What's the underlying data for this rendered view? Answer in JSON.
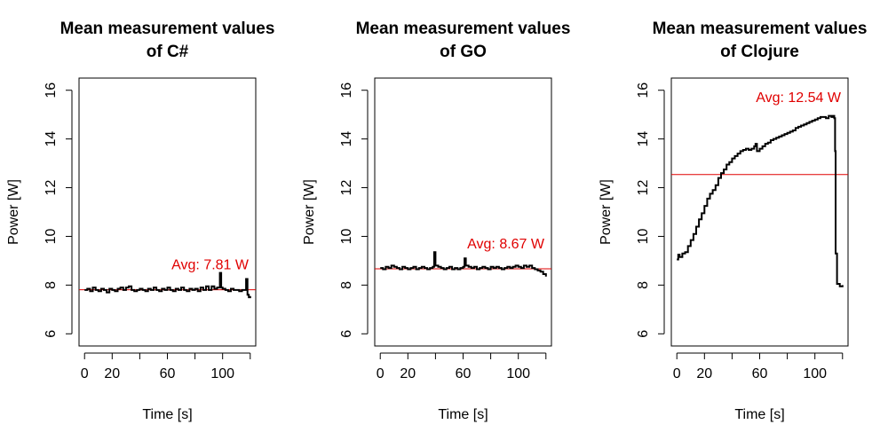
{
  "chart_data": [
    {
      "type": "line",
      "title": [
        "Mean measurement values",
        "of C#"
      ],
      "xlabel": "Time [s]",
      "ylabel": "Power [W]",
      "xlim": [
        -4,
        124
      ],
      "ylim": [
        5.5,
        16.5
      ],
      "xticks": [
        0,
        20,
        60,
        100
      ],
      "xtick_marks": [
        0,
        20,
        40,
        60,
        80,
        100,
        120
      ],
      "yticks": [
        6,
        8,
        10,
        12,
        14,
        16
      ],
      "avg_value": 7.81,
      "avg_label": "Avg: 7.81 W",
      "line_color": "#000000",
      "avg_color": "#e00000",
      "series": [
        {
          "x": [
            0,
            2,
            4,
            6,
            8,
            10,
            12,
            14,
            16,
            18,
            20,
            22,
            24,
            26,
            28,
            30,
            32,
            34,
            36,
            38,
            40,
            42,
            44,
            46,
            48,
            50,
            52,
            54,
            56,
            58,
            60,
            62,
            64,
            66,
            68,
            70,
            72,
            74,
            76,
            78,
            80,
            82,
            84,
            86,
            88,
            90,
            92,
            94,
            96,
            98,
            99,
            100,
            102,
            104,
            106,
            108,
            110,
            112,
            114,
            116,
            117,
            118,
            119,
            120
          ],
          "y": [
            7.8,
            7.85,
            7.75,
            7.9,
            7.8,
            7.75,
            7.85,
            7.8,
            7.7,
            7.85,
            7.8,
            7.75,
            7.85,
            7.9,
            7.8,
            7.9,
            7.95,
            7.8,
            7.75,
            7.8,
            7.85,
            7.8,
            7.75,
            7.85,
            7.8,
            7.9,
            7.8,
            7.75,
            7.85,
            7.8,
            7.9,
            7.8,
            7.75,
            7.85,
            7.8,
            7.9,
            7.8,
            7.75,
            7.85,
            7.8,
            7.85,
            7.75,
            7.9,
            7.8,
            7.95,
            7.8,
            7.95,
            7.85,
            7.9,
            8.5,
            7.9,
            7.85,
            7.8,
            7.75,
            7.85,
            7.8,
            7.8,
            7.75,
            7.8,
            7.8,
            8.25,
            7.6,
            7.5,
            7.55
          ]
        }
      ]
    },
    {
      "type": "line",
      "title": [
        "Mean measurement values",
        "of GO"
      ],
      "xlabel": "Time [s]",
      "ylabel": "Power [W]",
      "xlim": [
        -4,
        124
      ],
      "ylim": [
        5.5,
        16.5
      ],
      "xticks": [
        0,
        20,
        60,
        100
      ],
      "xtick_marks": [
        0,
        20,
        40,
        60,
        80,
        100,
        120
      ],
      "yticks": [
        6,
        8,
        10,
        12,
        14,
        16
      ],
      "avg_value": 8.67,
      "avg_label": "Avg: 8.67 W",
      "line_color": "#000000",
      "avg_color": "#e00000",
      "series": [
        {
          "x": [
            0,
            2,
            4,
            6,
            8,
            10,
            12,
            14,
            16,
            18,
            20,
            22,
            24,
            26,
            28,
            30,
            32,
            34,
            36,
            38,
            39,
            40,
            42,
            44,
            46,
            48,
            50,
            52,
            54,
            56,
            58,
            60,
            61,
            62,
            64,
            66,
            68,
            70,
            72,
            74,
            76,
            78,
            80,
            82,
            84,
            86,
            88,
            90,
            92,
            94,
            96,
            98,
            100,
            102,
            104,
            106,
            108,
            110,
            112,
            114,
            116,
            118,
            120
          ],
          "y": [
            8.7,
            8.65,
            8.75,
            8.7,
            8.8,
            8.75,
            8.7,
            8.65,
            8.75,
            8.7,
            8.65,
            8.7,
            8.75,
            8.65,
            8.7,
            8.75,
            8.7,
            8.65,
            8.7,
            8.75,
            9.35,
            8.8,
            8.75,
            8.7,
            8.65,
            8.7,
            8.75,
            8.65,
            8.7,
            8.65,
            8.7,
            8.75,
            9.1,
            8.8,
            8.75,
            8.7,
            8.75,
            8.65,
            8.7,
            8.75,
            8.7,
            8.65,
            8.75,
            8.7,
            8.75,
            8.7,
            8.65,
            8.7,
            8.75,
            8.7,
            8.75,
            8.8,
            8.75,
            8.7,
            8.8,
            8.75,
            8.8,
            8.7,
            8.65,
            8.6,
            8.55,
            8.45,
            8.35
          ]
        }
      ]
    },
    {
      "type": "line",
      "title": [
        "Mean measurement values",
        "of Clojure"
      ],
      "xlabel": "Time [s]",
      "ylabel": "Power [W]",
      "xlim": [
        -4,
        124
      ],
      "ylim": [
        5.5,
        16.5
      ],
      "xticks": [
        0,
        20,
        60,
        100
      ],
      "xtick_marks": [
        0,
        20,
        40,
        60,
        80,
        100,
        120
      ],
      "yticks": [
        6,
        8,
        10,
        12,
        14,
        16
      ],
      "avg_value": 12.54,
      "avg_label": "Avg: 12.54 W",
      "line_color": "#000000",
      "avg_color": "#e00000",
      "series": [
        {
          "x": [
            0,
            1,
            2,
            4,
            6,
            8,
            10,
            12,
            14,
            16,
            18,
            20,
            22,
            24,
            26,
            28,
            30,
            32,
            34,
            36,
            38,
            40,
            42,
            44,
            46,
            48,
            50,
            52,
            54,
            56,
            57,
            58,
            60,
            62,
            64,
            66,
            68,
            70,
            72,
            74,
            76,
            78,
            80,
            82,
            84,
            86,
            88,
            90,
            92,
            94,
            96,
            98,
            100,
            102,
            104,
            106,
            108,
            110,
            112,
            113,
            114,
            114.6,
            115,
            116,
            118,
            120
          ],
          "y": [
            9.05,
            9.25,
            9.15,
            9.3,
            9.35,
            9.6,
            9.85,
            10.1,
            10.4,
            10.7,
            10.95,
            11.25,
            11.55,
            11.75,
            11.9,
            12.1,
            12.4,
            12.6,
            12.75,
            12.95,
            13.05,
            13.2,
            13.3,
            13.4,
            13.5,
            13.55,
            13.6,
            13.55,
            13.6,
            13.7,
            13.8,
            13.5,
            13.6,
            13.7,
            13.8,
            13.85,
            13.95,
            14.0,
            14.05,
            14.1,
            14.15,
            14.2,
            14.25,
            14.3,
            14.35,
            14.45,
            14.5,
            14.55,
            14.6,
            14.65,
            14.7,
            14.75,
            14.8,
            14.85,
            14.9,
            14.9,
            14.85,
            14.95,
            14.9,
            14.95,
            14.85,
            13.5,
            9.3,
            8.05,
            7.95,
            8.0
          ]
        }
      ]
    }
  ]
}
